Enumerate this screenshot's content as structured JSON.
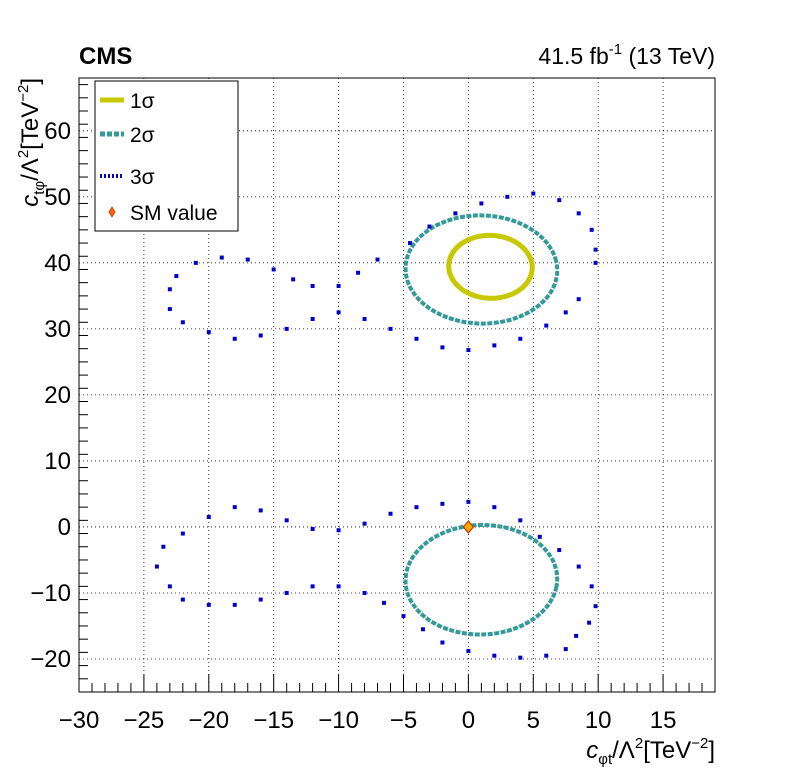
{
  "chart_data": {
    "type": "scatter",
    "experiment": "CMS",
    "lumi": "41.5 fb",
    "lumi_sup": "-1",
    "energy": " (13 TeV)",
    "xlabel": {
      "main": "c",
      "sub": "φt",
      "rest": "/Λ",
      "sup1": "2",
      "unit": "[TeV",
      "sup2": "−2",
      "close": "]"
    },
    "ylabel": {
      "main": "c",
      "sub": "tφ",
      "rest": "/Λ",
      "sup1": "2",
      "unit": "[TeV",
      "sup2": "−2",
      "close": "]"
    },
    "xlim": [
      -30,
      19
    ],
    "ylim": [
      -25,
      68
    ],
    "xticks": [
      -30,
      -25,
      -20,
      -15,
      -10,
      -5,
      0,
      5,
      10,
      15
    ],
    "xtick_labels": [
      "−30",
      "−25",
      "−20",
      "−15",
      "−10",
      "−5",
      "0",
      "5",
      "10",
      "15"
    ],
    "yticks": [
      -20,
      -10,
      0,
      10,
      20,
      30,
      40,
      50,
      60
    ],
    "ytick_labels": [
      "−20",
      "−10",
      "0",
      "10",
      "20",
      "30",
      "40",
      "50",
      "60"
    ],
    "grid": true,
    "legend_position": "top-left",
    "legend": [
      {
        "label": "1σ",
        "color": "#c8c800",
        "style": "solid"
      },
      {
        "label": "2σ",
        "color": "#339999",
        "style": "dash"
      },
      {
        "label": "3σ",
        "color": "#0000cc",
        "style": "dot"
      },
      {
        "label": "SM value",
        "color": "#ff6600",
        "style": "marker"
      }
    ],
    "series": [
      {
        "level": "1σ",
        "color": "#c8c800",
        "contours": [
          {
            "cx": 1.7,
            "cy": 39.4,
            "rx": 3.6,
            "ry": 4.7,
            "tilt": 0.5
          }
        ]
      },
      {
        "level": "2σ",
        "color": "#339999",
        "contours": [
          {
            "cx": 1.0,
            "cy": 39.0,
            "rx": 6.4,
            "ry": 8.1,
            "tilt": 0.45
          },
          {
            "cx": 1.0,
            "cy": -8.0,
            "rx": 6.4,
            "ry": 8.2,
            "tilt": -0.45
          }
        ]
      },
      {
        "level": "3σ",
        "color": "#0000cc",
        "points": [
          [
            -23,
            36
          ],
          [
            -23,
            33
          ],
          [
            -22,
            31
          ],
          [
            -20,
            29.5
          ],
          [
            -18,
            28.5
          ],
          [
            -16,
            29
          ],
          [
            -14,
            30
          ],
          [
            -12,
            31.5
          ],
          [
            -10,
            32.5
          ],
          [
            -8,
            31.5
          ],
          [
            -6,
            30
          ],
          [
            -4,
            28.5
          ],
          [
            -2,
            27.2
          ],
          [
            0,
            26.8
          ],
          [
            2,
            27.5
          ],
          [
            4,
            28.5
          ],
          [
            6,
            30.5
          ],
          [
            7.5,
            32.5
          ],
          [
            8.5,
            34.5
          ],
          [
            -22.5,
            38
          ],
          [
            -21,
            40
          ],
          [
            -19,
            40.8
          ],
          [
            -17,
            40.5
          ],
          [
            -15,
            39
          ],
          [
            -13.5,
            37.5
          ],
          [
            -12,
            36.5
          ],
          [
            -10,
            36.5
          ],
          [
            -8.5,
            38.5
          ],
          [
            -7,
            40.5
          ],
          [
            -4.5,
            43
          ],
          [
            -3,
            45.5
          ],
          [
            -1,
            47.5
          ],
          [
            1,
            49
          ],
          [
            3,
            50
          ],
          [
            5,
            50.5
          ],
          [
            7,
            49.5
          ],
          [
            8.5,
            47.5
          ],
          [
            9.5,
            45
          ],
          [
            9.8,
            42
          ],
          [
            9.8,
            40
          ],
          [
            -24,
            -6
          ],
          [
            -23,
            -9
          ],
          [
            -22,
            -11
          ],
          [
            -20,
            -11.8
          ],
          [
            -18,
            -11.8
          ],
          [
            -16,
            -11
          ],
          [
            -14,
            -10
          ],
          [
            -12,
            -9
          ],
          [
            -10,
            -9
          ],
          [
            -8,
            -10
          ],
          [
            -6.5,
            -11.5
          ],
          [
            -5,
            -13.5
          ],
          [
            -3.5,
            -15.5
          ],
          [
            -2,
            -17.5
          ],
          [
            0,
            -18.8
          ],
          [
            2,
            -19.5
          ],
          [
            4,
            -19.8
          ],
          [
            6,
            -19.5
          ],
          [
            7.5,
            -18.5
          ],
          [
            -23.5,
            -3
          ],
          [
            -22,
            -1
          ],
          [
            -20,
            1.5
          ],
          [
            -18,
            3
          ],
          [
            -16,
            2.5
          ],
          [
            -14,
            1
          ],
          [
            -12,
            -0.3
          ],
          [
            -10,
            -0.5
          ],
          [
            -8,
            0.5
          ],
          [
            -6,
            2
          ],
          [
            -4,
            3
          ],
          [
            -2,
            3.5
          ],
          [
            0,
            3.8
          ],
          [
            2,
            3
          ],
          [
            4,
            1
          ],
          [
            5.5,
            -1.5
          ],
          [
            7,
            -3.5
          ],
          [
            8.5,
            -6
          ],
          [
            9.5,
            -9
          ],
          [
            9.8,
            -12
          ],
          [
            9.3,
            -14.5
          ],
          [
            8.3,
            -16.5
          ]
        ]
      }
    ],
    "sm_value": {
      "x": 0,
      "y": 0
    }
  }
}
